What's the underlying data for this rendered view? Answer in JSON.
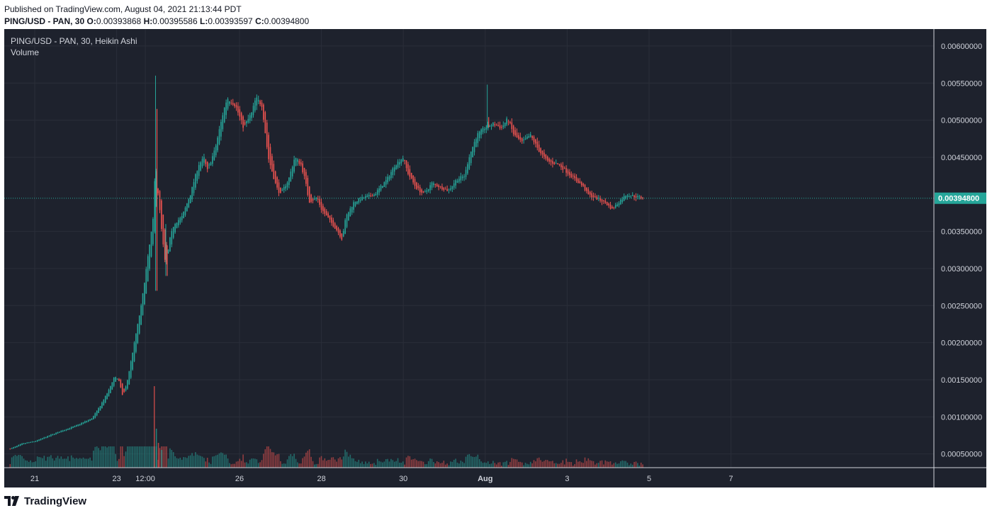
{
  "header": {
    "published": "Published on TradingView.com, August 04, 2021 21:13:44 PDT",
    "symbol": "PING/USD - PAN, 30",
    "o_label": "O:",
    "o_value": "0.00393868",
    "h_label": "H:",
    "h_value": "0.00395586",
    "l_label": "L:",
    "l_value": "0.00393597",
    "c_label": "C:",
    "c_value": "0.00394800"
  },
  "legend": {
    "title": "PING/USD - PAN, 30, Heikin Ashi",
    "volume": "Volume"
  },
  "footer": {
    "brand": "TradingView"
  },
  "colors": {
    "background": "#1e222d",
    "up": "#26a69a",
    "down": "#ef5350",
    "grid": "#2a2e39",
    "axis_text": "#d1d4dc",
    "last_price_bg": "#26a69a"
  },
  "chart_data": {
    "type": "line",
    "style": "heikin-ashi candlestick",
    "series": [
      {
        "values_from": "close"
      }
    ],
    "ylim": [
      0,
      0.0062
    ],
    "y_ticks": [
      "0.00600000",
      "0.00550000",
      "0.00500000",
      "0.00450000",
      "0.00350000",
      "0.00300000",
      "0.00250000",
      "0.00200000",
      "0.00150000",
      "0.00100000",
      "0.00050000"
    ],
    "y_tick_values": [
      0.006,
      0.0055,
      0.005,
      0.0045,
      0.0035,
      0.003,
      0.0025,
      0.002,
      0.0015,
      0.001,
      0.0005
    ],
    "x_ticks": [
      {
        "label": "21",
        "day": 0
      },
      {
        "label": "23",
        "day": 2
      },
      {
        "label": "12:00",
        "day": 2.7
      },
      {
        "label": "26",
        "day": 5
      },
      {
        "label": "28",
        "day": 7
      },
      {
        "label": "30",
        "day": 9
      },
      {
        "label": "Aug",
        "day": 11
      },
      {
        "label": "3",
        "day": 13
      },
      {
        "label": "5",
        "day": 15
      },
      {
        "label": "7",
        "day": 17
      }
    ],
    "last_price": "0.00394800",
    "last_price_value": 0.003948,
    "anchors": [
      [
        -0.6,
        0.00057
      ],
      [
        -0.3,
        0.00064
      ],
      [
        0,
        0.00067
      ],
      [
        0.5,
        0.00078
      ],
      [
        1,
        0.00088
      ],
      [
        1.4,
        0.00098
      ],
      [
        1.6,
        0.00115
      ],
      [
        1.8,
        0.00135
      ],
      [
        1.95,
        0.00155
      ],
      [
        2.05,
        0.0015
      ],
      [
        2.15,
        0.00128
      ],
      [
        2.25,
        0.00145
      ],
      [
        2.4,
        0.0019
      ],
      [
        2.6,
        0.0025
      ],
      [
        2.8,
        0.0033
      ],
      [
        2.9,
        0.0037
      ],
      [
        2.95,
        0.0045
      ],
      [
        3.0,
        0.0041
      ],
      [
        3.1,
        0.0035
      ],
      [
        3.2,
        0.003
      ],
      [
        3.3,
        0.0034
      ],
      [
        3.4,
        0.0036
      ],
      [
        3.6,
        0.0037
      ],
      [
        3.8,
        0.004
      ],
      [
        4.0,
        0.0044
      ],
      [
        4.15,
        0.0045
      ],
      [
        4.2,
        0.0043
      ],
      [
        4.4,
        0.0046
      ],
      [
        4.6,
        0.0051
      ],
      [
        4.7,
        0.0053
      ],
      [
        4.9,
        0.0052
      ],
      [
        5.1,
        0.0049
      ],
      [
        5.3,
        0.0051
      ],
      [
        5.4,
        0.0053
      ],
      [
        5.55,
        0.0052
      ],
      [
        5.7,
        0.0045
      ],
      [
        5.8,
        0.0043
      ],
      [
        5.9,
        0.0041
      ],
      [
        6.0,
        0.004
      ],
      [
        6.2,
        0.0042
      ],
      [
        6.35,
        0.0045
      ],
      [
        6.5,
        0.0044
      ],
      [
        6.6,
        0.0042
      ],
      [
        6.7,
        0.0039
      ],
      [
        6.9,
        0.00395
      ],
      [
        7.0,
        0.0038
      ],
      [
        7.2,
        0.00365
      ],
      [
        7.4,
        0.0035
      ],
      [
        7.5,
        0.0034
      ],
      [
        7.6,
        0.0037
      ],
      [
        7.8,
        0.0039
      ],
      [
        8.0,
        0.00395
      ],
      [
        8.3,
        0.004
      ],
      [
        8.6,
        0.0042
      ],
      [
        8.8,
        0.0044
      ],
      [
        9.0,
        0.0045
      ],
      [
        9.1,
        0.0043
      ],
      [
        9.3,
        0.0041
      ],
      [
        9.5,
        0.004
      ],
      [
        9.7,
        0.00415
      ],
      [
        9.9,
        0.0041
      ],
      [
        10.1,
        0.00405
      ],
      [
        10.3,
        0.0042
      ],
      [
        10.5,
        0.00425
      ],
      [
        10.6,
        0.0045
      ],
      [
        10.8,
        0.0048
      ],
      [
        11.0,
        0.0049
      ],
      [
        11.2,
        0.00495
      ],
      [
        11.4,
        0.0049
      ],
      [
        11.55,
        0.00502
      ],
      [
        11.7,
        0.0048
      ],
      [
        11.9,
        0.0047
      ],
      [
        12.1,
        0.0048
      ],
      [
        12.3,
        0.0046
      ],
      [
        12.5,
        0.00445
      ],
      [
        12.8,
        0.0044
      ],
      [
        13.0,
        0.0043
      ],
      [
        13.2,
        0.0042
      ],
      [
        13.4,
        0.0041
      ],
      [
        13.5,
        0.004
      ],
      [
        13.7,
        0.00395
      ],
      [
        13.9,
        0.0039
      ],
      [
        14.1,
        0.0038
      ],
      [
        14.3,
        0.00392
      ],
      [
        14.45,
        0.004
      ],
      [
        14.6,
        0.00398
      ],
      [
        14.75,
        0.00396
      ],
      [
        14.85,
        0.00395
      ]
    ],
    "spikes": [
      {
        "day": 2.95,
        "high": 0.0056,
        "low": 0.0027
      },
      {
        "day": 3.2,
        "high": 0.0036,
        "low": 0.0029
      },
      {
        "day": 11.05,
        "high": 0.00548,
        "low": 0.0049
      }
    ]
  }
}
